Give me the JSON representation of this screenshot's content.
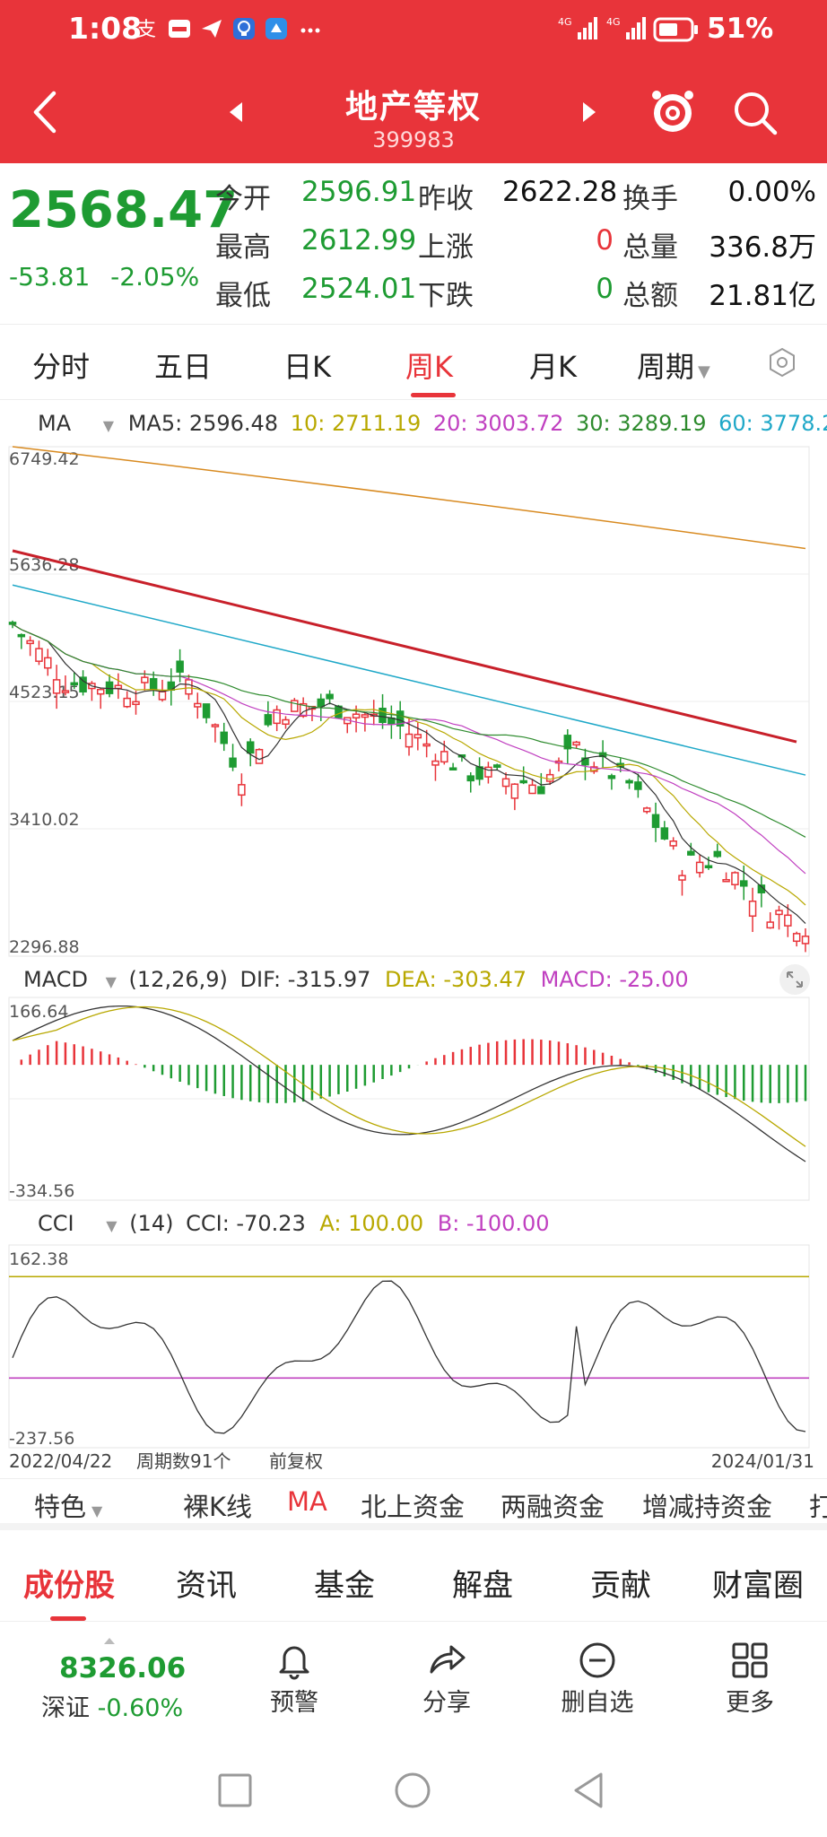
{
  "status_bar": {
    "time": "1:08",
    "network": "4G",
    "battery_pct": "51%"
  },
  "header": {
    "title": "地产等权",
    "code": "399983"
  },
  "quote": {
    "last": "2568.47",
    "change": "-53.81",
    "change_pct": "-2.05%",
    "labels": {
      "open": "今开",
      "prev_close": "昨收",
      "turnover": "换手",
      "high": "最高",
      "up": "上涨",
      "volume": "总量",
      "low": "最低",
      "down": "下跌",
      "amount": "总额"
    },
    "open": "2596.91",
    "prev_close": "2622.28",
    "turnover": "0.00%",
    "high": "2612.99",
    "up_count": "0",
    "volume": "336.8万",
    "low": "2524.01",
    "down_count": "0",
    "amount": "21.81亿"
  },
  "period_tabs": [
    "分时",
    "五日",
    "日K",
    "周K",
    "月K",
    "周期"
  ],
  "active_period": "周K",
  "indicators": {
    "ma": {
      "name": "MA",
      "ma5": "MA5: 2596.48",
      "ma10": "10: 2711.19",
      "ma20": "20: 3003.72",
      "ma30": "30: 3289.19",
      "ma60": "60: 3778.2",
      "overflow": "1"
    },
    "macd": {
      "name": "MACD",
      "params": "(12,26,9)",
      "dif": "DIF: -315.97",
      "dea": "DEA: -303.47",
      "macd": "MACD: -25.00"
    },
    "cci": {
      "name": "CCI",
      "params": "(14)",
      "cci": "CCI: -70.23",
      "a": "A: 100.00",
      "b": "B: -100.00"
    }
  },
  "colors": {
    "up": "#e8343a",
    "down": "#1e9b32",
    "ma5": "#333333",
    "ma10": "#b8a800",
    "ma20": "#c040c0",
    "ma30": "#2e8b2e",
    "ma60": "#1fa8c8",
    "ma120": "#d88a20",
    "trend": "#c8202a"
  },
  "chart_data": {
    "type": "candlestick",
    "price_axis": {
      "ticks": [
        "6749.42",
        "5636.28",
        "4523.15",
        "3410.02",
        "2296.88"
      ],
      "range": [
        2296.88,
        6749.42
      ]
    },
    "macd_axis": {
      "ticks": [
        "166.64",
        "-334.56"
      ],
      "range": [
        -334.56,
        166.64
      ]
    },
    "cci_axis": {
      "ticks": [
        "162.38",
        "-237.56"
      ],
      "range": [
        -237.56,
        162.38
      ]
    },
    "x_axis": {
      "start": "2022/04/22",
      "end": "2024/01/31",
      "period_count": "周期数91个",
      "adjust": "前复权"
    },
    "bars": 91,
    "ma120_line": [
      6749,
      6700,
      6600,
      6500,
      6300,
      6200,
      6000
    ],
    "trend_line": {
      "from": 5840,
      "to": 4170
    }
  },
  "feature_tabs": [
    "特色",
    "裸K线",
    "MA",
    "北上资金",
    "两融资金",
    "增减持资金",
    "打"
  ],
  "active_feature": "MA",
  "section_tabs": [
    "成份股",
    "资讯",
    "基金",
    "解盘",
    "贡献",
    "财富圈"
  ],
  "active_section": "成份股",
  "bottom_bar": {
    "index_value": "8326.06",
    "index_name": "深证",
    "index_change": "-0.60%",
    "items": [
      {
        "label": "预警",
        "icon": "bell-icon"
      },
      {
        "label": "分享",
        "icon": "share-icon"
      },
      {
        "label": "删自选",
        "icon": "remove-watchlist-icon"
      },
      {
        "label": "更多",
        "icon": "grid-more-icon"
      }
    ]
  }
}
